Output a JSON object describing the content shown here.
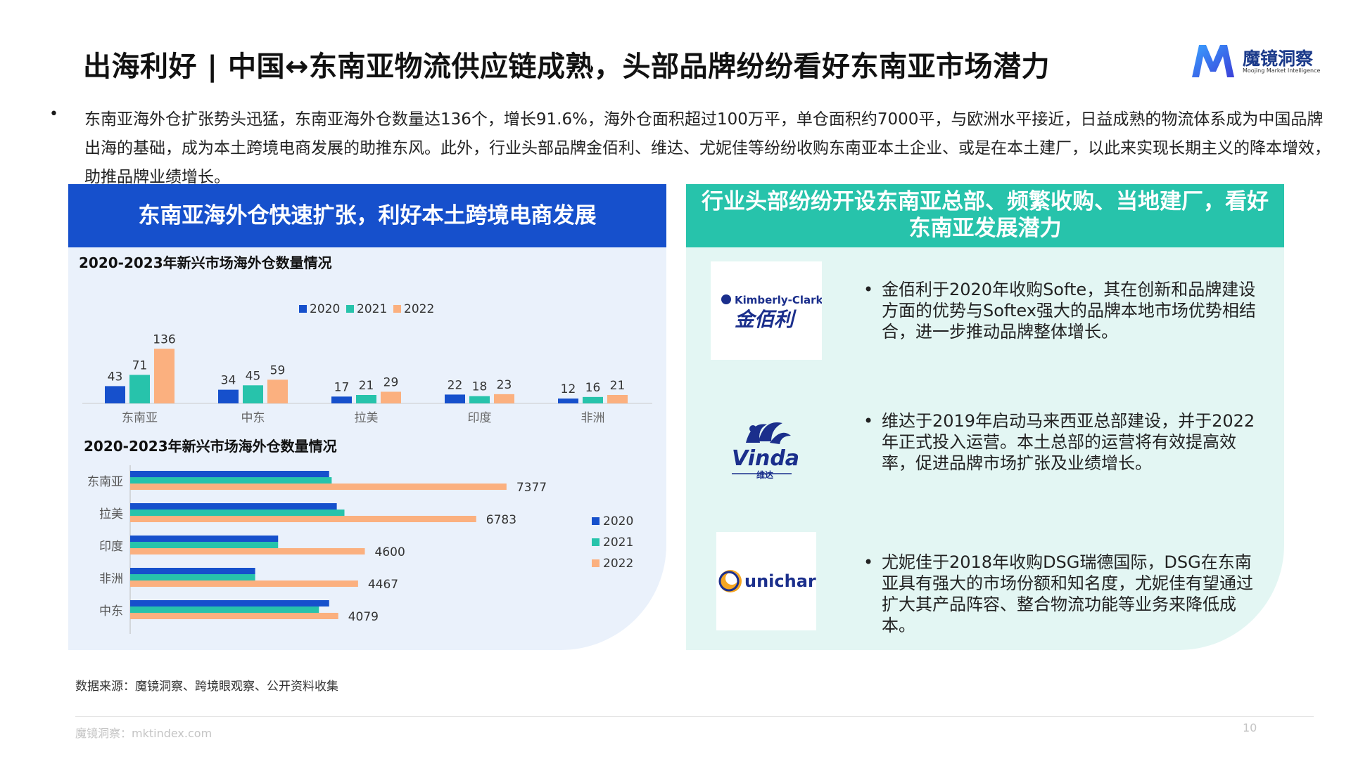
{
  "header": {
    "title": "出海利好 | 中国↔东南亚物流供应链成熟，头部品牌纷纷看好东南亚市场潜力",
    "brand_name": "魔镜洞察",
    "brand_sub": "Moojing Market Intelligence",
    "brand_color": "#1b3a8a"
  },
  "intro": {
    "bullet": "•",
    "text": "东南亚海外仓扩张势头迅猛，东南亚海外仓数量达136个，增长91.6%，海外仓面积超过100万平，单仓面积约7000平，与欧洲水平接近，日益成熟的物流体系成为中国品牌出海的基础，成为本土跨境电商发展的助推东风。此外，行业头部品牌金佰利、维达、尤妮佳等纷纷收购东南亚本土企业、或是在本土建厂，以此来实现长期主义的降本增效，助推品牌业绩增长。"
  },
  "left_panel": {
    "header": "东南亚海外仓快速扩张，利好本土跨境电商发展",
    "header_color": "#1650cc"
  },
  "right_panel": {
    "header": "行业头部纷纷开设东南亚总部、频繁收购、当地建厂，看好东南亚发展潜力",
    "header_color": "#27c3ab",
    "items": [
      {
        "logo_icon": "kimberly-clark-logo",
        "logo_text_en": "Kimberly-Clark",
        "logo_text_cn": "金佰利",
        "text": "金佰利于2020年收购Softe，其在创新和品牌建设方面的优势与Softex强大的品牌本地市场优势相结合，进一步推动品牌整体增长。"
      },
      {
        "logo_icon": "vinda-logo",
        "logo_text_en": "Vinda",
        "logo_text_cn": "维达",
        "text": "维达于2019年启动马来西亚总部建设，并于2022年正式投入运营。本土总部的运营将有效提高效率，促进品牌市场扩张及业绩增长。"
      },
      {
        "logo_icon": "unicharm-logo",
        "logo_text_en": "unicharm",
        "text": "尤妮佳于2018年收购DSG瑞德国际，DSG在东南亚具有强大的市场份额和知名度，尤妮佳有望通过扩大其产品阵容、整合物流功能等业务来降低成本。"
      }
    ]
  },
  "chart_data": [
    {
      "type": "bar",
      "title": "2020-2023年新兴市场海外仓数量情况",
      "categories": [
        "东南亚",
        "中东",
        "拉美",
        "印度",
        "非洲"
      ],
      "series": [
        {
          "name": "2020",
          "color": "#1650cc",
          "values": [
            43,
            34,
            17,
            22,
            12
          ]
        },
        {
          "name": "2021",
          "color": "#27c3ab",
          "values": [
            71,
            45,
            21,
            18,
            16
          ]
        },
        {
          "name": "2022",
          "color": "#fbb07f",
          "values": [
            136,
            59,
            29,
            23,
            21
          ]
        }
      ],
      "ylim": [
        0,
        140
      ],
      "legend": "top",
      "grid": false
    },
    {
      "type": "bar",
      "orientation": "horizontal",
      "title": "2020-2023年新兴市场海外仓数量情况",
      "categories": [
        "东南亚",
        "拉美",
        "印度",
        "非洲",
        "中东"
      ],
      "series": [
        {
          "name": "2020",
          "color": "#1650cc",
          "values": [
            3900,
            4050,
            2900,
            2450,
            3900
          ]
        },
        {
          "name": "2021",
          "color": "#27c3ab",
          "values": [
            3950,
            4200,
            2900,
            2450,
            3700
          ]
        },
        {
          "name": "2022",
          "color": "#fbb07f",
          "values": [
            7377,
            6783,
            4600,
            4467,
            4079
          ]
        }
      ],
      "data_labels": [
        "7377",
        "6783",
        "4600",
        "4467",
        "4079"
      ],
      "xlim": [
        0,
        8000
      ],
      "legend": "right",
      "grid": false
    }
  ],
  "footer": {
    "source": "数据来源：魔镜洞察、跨境眼观察、公开资料收集",
    "site": "魔镜洞察：mktindex.com",
    "page": "10"
  }
}
